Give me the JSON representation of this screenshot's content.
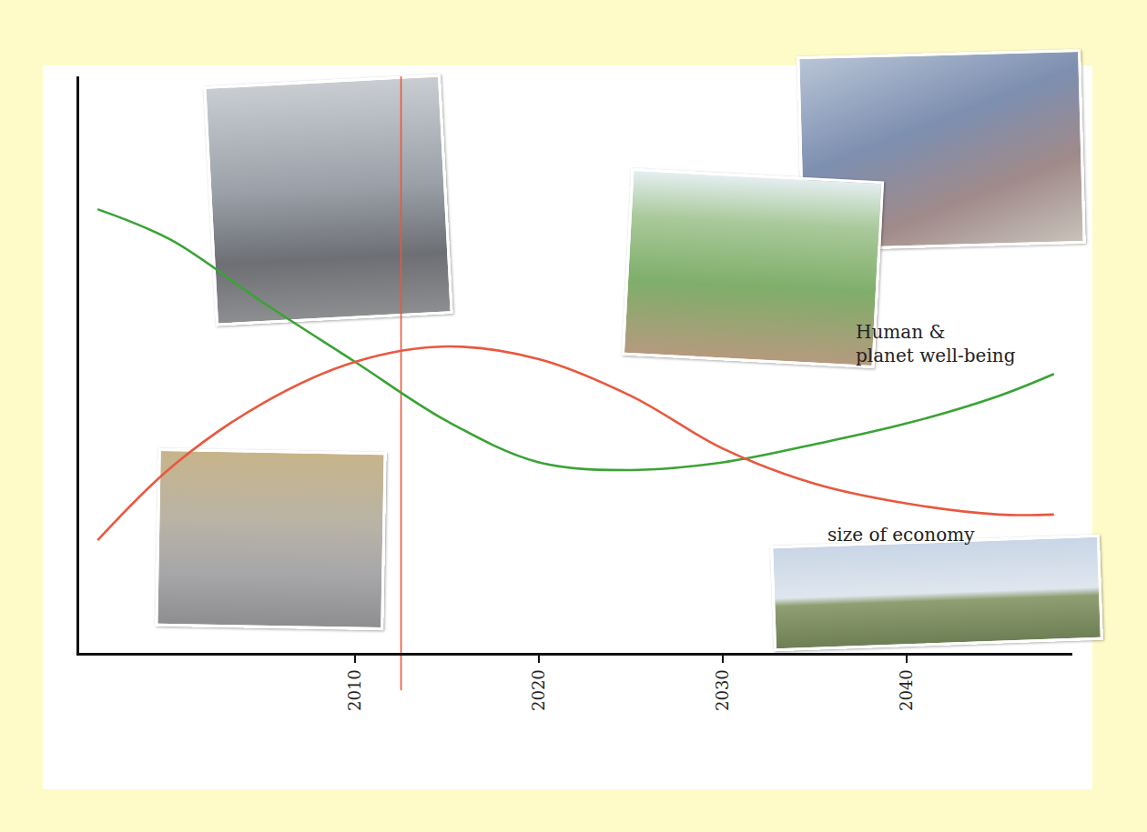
{
  "chart_data": {
    "type": "line",
    "x": [
      1996,
      2000,
      2005,
      2010,
      2015,
      2020,
      2025,
      2030,
      2035,
      2040,
      2045,
      2048
    ],
    "series": [
      {
        "name": "Human & planet well-being",
        "color": "#3aa335",
        "values": [
          8.08,
          7.52,
          6.38,
          5.3,
          4.22,
          3.47,
          3.33,
          3.47,
          3.8,
          4.18,
          4.68,
          5.08
        ]
      },
      {
        "name": "size of economy",
        "color": "#e8583f",
        "values": [
          2.05,
          3.38,
          4.55,
          5.3,
          5.58,
          5.35,
          4.68,
          3.72,
          3.08,
          2.72,
          2.52,
          2.52
        ]
      }
    ],
    "xlim": [
      1995,
      2049
    ],
    "xticks": [
      2010,
      2020,
      2030,
      2040
    ],
    "ylim": [
      0,
      10.5
    ],
    "yticks": [],
    "tick_labels": "x",
    "grid": false,
    "vline": {
      "x": 2012.5,
      "color": "#e8583f"
    }
  }
}
